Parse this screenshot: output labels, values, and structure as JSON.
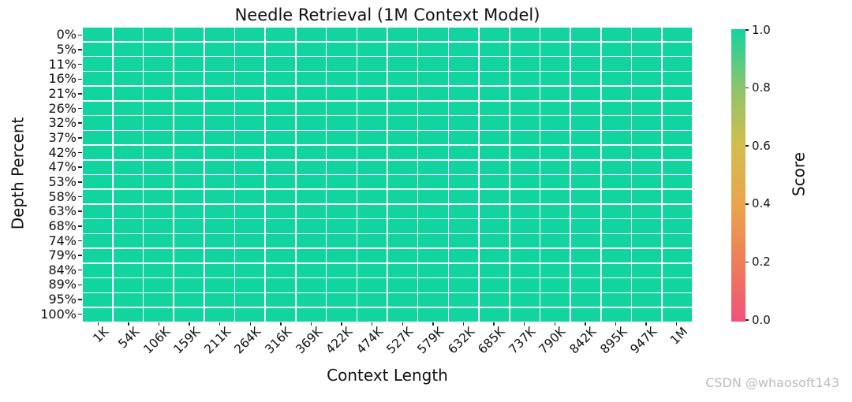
{
  "title": "Needle Retrieval (1M Context Model)",
  "watermark": "CSDN @whaosoft143",
  "colors": {
    "cell_green": "#10d49e",
    "gridline": "#ffffff",
    "tick": "#222222",
    "text": "#111111",
    "watermark_gray": "#bcbcbc"
  },
  "chart_data": {
    "type": "heatmap",
    "title": "Needle Retrieval (1M Context Model)",
    "xlabel": "Context Length",
    "ylabel": "Depth Percent",
    "x_ticks": [
      "1K",
      "54K",
      "106K",
      "159K",
      "211K",
      "264K",
      "316K",
      "369K",
      "422K",
      "474K",
      "527K",
      "579K",
      "632K",
      "685K",
      "737K",
      "790K",
      "842K",
      "895K",
      "947K",
      "1M"
    ],
    "y_ticks": [
      "0%",
      "5%",
      "11%",
      "16%",
      "21%",
      "26%",
      "32%",
      "37%",
      "42%",
      "47%",
      "53%",
      "58%",
      "63%",
      "68%",
      "74%",
      "79%",
      "84%",
      "89%",
      "95%",
      "100%"
    ],
    "n_rows": 20,
    "n_cols": 20,
    "uniform_value": 1.0,
    "grid": true,
    "annotations": false,
    "colorbar": {
      "label": "Score",
      "min": 0.0,
      "max": 1.0,
      "tick_values": [
        1.0,
        0.8,
        0.6,
        0.4,
        0.2,
        0.0
      ],
      "tick_labels": [
        "1.0",
        "0.8",
        "0.6",
        "0.4",
        "0.2",
        "0.0"
      ],
      "colormap_stops": [
        {
          "value": 0.0,
          "color": "#f1527b"
        },
        {
          "value": 0.2,
          "color": "#ee7d58"
        },
        {
          "value": 0.4,
          "color": "#eaa44e"
        },
        {
          "value": 0.6,
          "color": "#d4bd4c"
        },
        {
          "value": 0.8,
          "color": "#8cc46c"
        },
        {
          "value": 1.0,
          "color": "#12d49e"
        }
      ]
    }
  }
}
